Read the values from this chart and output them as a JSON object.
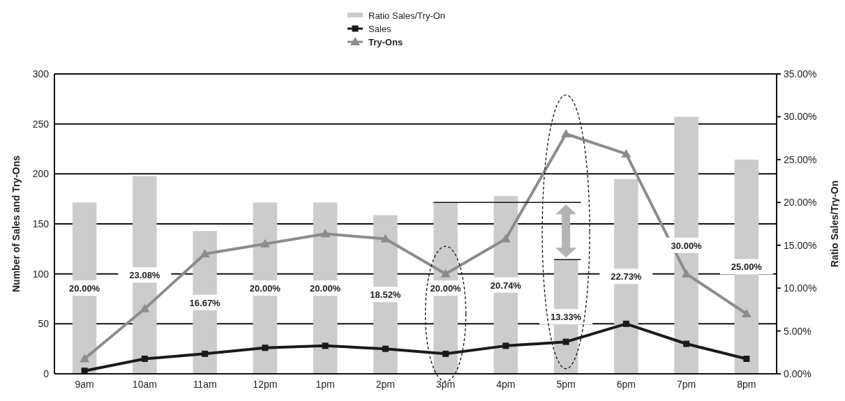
{
  "chart_data": {
    "type": "bar",
    "categories": [
      "9am",
      "10am",
      "11am",
      "12pm",
      "1pm",
      "2pm",
      "3pm",
      "4pm",
      "5pm",
      "6pm",
      "7pm",
      "8pm"
    ],
    "ylabel": "Number of Sales and Try-Ons",
    "y2label": "Ratio Sales/Try-On",
    "ylim": [
      0,
      300
    ],
    "yticks": [
      0,
      50,
      100,
      150,
      200,
      250,
      300
    ],
    "y2lim": [
      0,
      35
    ],
    "y2ticks": [
      {
        "value": 0,
        "label": "0.00%"
      },
      {
        "value": 5,
        "label": "5.00%"
      },
      {
        "value": 10,
        "label": "10.00%"
      },
      {
        "value": 15,
        "label": "15.00%"
      },
      {
        "value": 20,
        "label": "20.00%"
      },
      {
        "value": 25,
        "label": "25.00%"
      },
      {
        "value": 30,
        "label": "30.00%"
      },
      {
        "value": 35,
        "label": "35.00%"
      }
    ],
    "grid": "y",
    "legend": "top",
    "series": [
      {
        "name": "Ratio Sales/Try-On",
        "axis": "y2",
        "color": "#cccccc",
        "values": [
          20,
          23.08,
          16.67,
          20,
          20,
          18.52,
          20,
          20.74,
          13.33,
          22.73,
          30,
          25
        ],
        "value_labels": [
          "20.00%",
          "23.08%",
          "16.67%",
          "20.00%",
          "20.00%",
          "18.52%",
          "20.00%",
          "20.74%",
          "13.33%",
          "22.73%",
          "30.00%",
          "25.00%"
        ]
      },
      {
        "name": "Sales",
        "type": "line",
        "color": "#1a1a1a",
        "marker": "square",
        "values": [
          3,
          15,
          20,
          26,
          28,
          25,
          20,
          28,
          32,
          50,
          30,
          15
        ]
      },
      {
        "name": "Try-Ons",
        "type": "line",
        "color": "#8c8c8c",
        "marker": "triangle",
        "values": [
          15,
          65,
          120,
          130,
          140,
          135,
          100,
          135,
          240,
          220,
          100,
          60
        ]
      }
    ]
  }
}
